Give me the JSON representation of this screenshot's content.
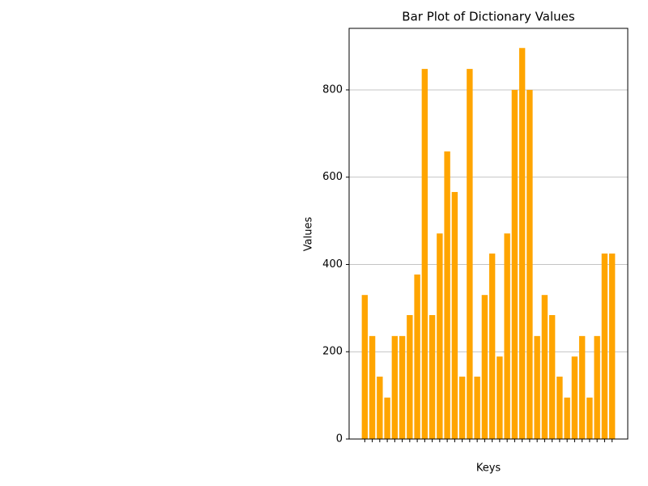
{
  "chart_data": {
    "type": "bar",
    "title": "Bar Plot of Dictionary Values",
    "x_label": "Keys",
    "y_label": "Values",
    "categories": [
      null,
      null,
      null,
      null,
      null,
      null,
      null,
      null,
      null,
      null,
      null,
      null,
      null,
      null,
      null,
      null,
      null,
      null,
      null,
      null,
      null,
      null,
      null,
      null,
      null,
      null,
      null,
      null,
      null,
      null,
      null,
      null,
      null,
      null
    ],
    "values": [
      330,
      236,
      143,
      95,
      236,
      236,
      284,
      377,
      848,
      284,
      471,
      659,
      566,
      143,
      848,
      143,
      330,
      425,
      189,
      471,
      800,
      896,
      800,
      236,
      330,
      284,
      143,
      95,
      189,
      236,
      95,
      236,
      425,
      425
    ],
    "color": "#ffa500",
    "ylim": [
      0,
      941
    ],
    "yticks": [
      0,
      200,
      400,
      600,
      800
    ],
    "grid": true
  }
}
